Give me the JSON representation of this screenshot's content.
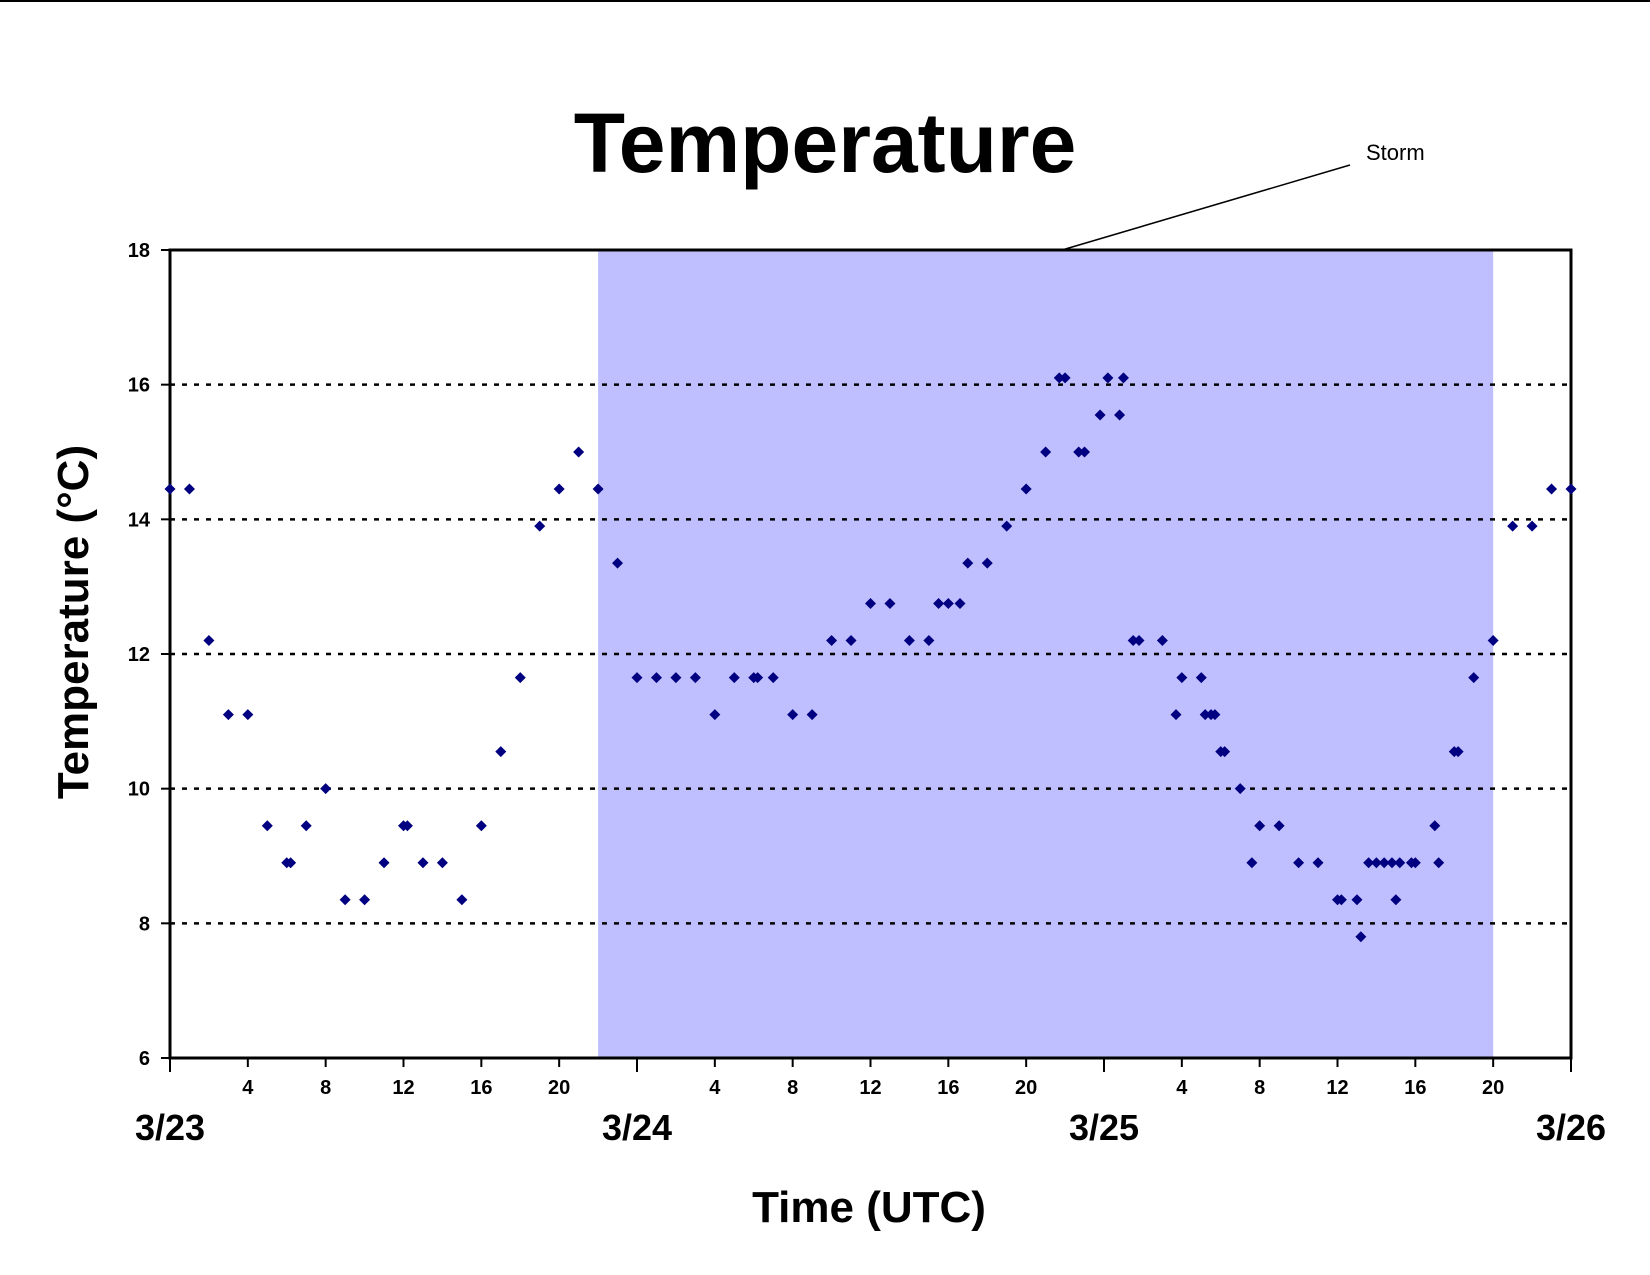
{
  "chart_data": {
    "type": "scatter",
    "title": "Temperature",
    "xlabel": "Time (UTC)",
    "ylabel": "Temperature (°C)",
    "ylim": [
      6,
      18
    ],
    "yticks": [
      "6",
      "8",
      "10",
      "12",
      "14",
      "16",
      "18"
    ],
    "xlim": [
      "3/23 00:00",
      "3/26 00:00"
    ],
    "x_hour_ticks": [
      "4",
      "8",
      "12",
      "16",
      "20",
      "4",
      "8",
      "12",
      "16",
      "20",
      "4",
      "8",
      "12",
      "16",
      "20"
    ],
    "x_day_labels": [
      "3/23",
      "3/24",
      "3/25",
      "3/26"
    ],
    "grid": "horizontal dotted at 8, 10, 12, 14, 16",
    "marker_color": "#000080",
    "shade_color": "#BFBFFF",
    "shaded_region": {
      "label": "Storm",
      "x_start": "3/23 22:00",
      "x_end": "3/25 20:00"
    },
    "series": [
      {
        "x": [
          "3/23 00:00",
          "3/23 01:00",
          "3/23 02:00",
          "3/23 03:00",
          "3/23 04:00",
          "3/23 05:00",
          "3/23 06:00",
          "3/23 06:12",
          "3/23 07:00",
          "3/23 08:00",
          "3/23 09:00",
          "3/23 10:00",
          "3/23 11:00",
          "3/23 12:00",
          "3/23 12:12",
          "3/23 13:00",
          "3/23 14:00",
          "3/23 15:00",
          "3/23 16:00",
          "3/23 17:00",
          "3/23 18:00",
          "3/23 19:00",
          "3/23 20:00",
          "3/23 21:00",
          "3/23 22:00",
          "3/23 23:00",
          "3/24 00:00",
          "3/24 01:00",
          "3/24 02:00",
          "3/24 03:00",
          "3/24 04:00",
          "3/24 05:00",
          "3/24 06:00",
          "3/24 06:12",
          "3/24 07:00",
          "3/24 08:00",
          "3/24 09:00",
          "3/24 10:00",
          "3/24 11:00",
          "3/24 12:00",
          "3/24 13:00",
          "3/24 14:00",
          "3/24 15:00",
          "3/24 15:30",
          "3/24 16:00",
          "3/24 16:36",
          "3/24 17:00",
          "3/24 18:00",
          "3/24 19:00",
          "3/24 20:00",
          "3/24 21:00",
          "3/24 21:42",
          "3/24 22:00",
          "3/24 22:42",
          "3/24 23:00",
          "3/24 23:48",
          "3/25 00:12",
          "3/25 00:48",
          "3/25 01:00",
          "3/25 01:30",
          "3/25 01:48",
          "3/25 03:00",
          "3/25 03:42",
          "3/25 04:00",
          "3/25 05:00",
          "3/25 05:12",
          "3/25 05:30",
          "3/25 05:42",
          "3/25 06:00",
          "3/25 06:12",
          "3/25 07:00",
          "3/25 07:36",
          "3/25 08:00",
          "3/25 09:00",
          "3/25 10:00",
          "3/25 11:00",
          "3/25 12:00",
          "3/25 12:12",
          "3/25 13:00",
          "3/25 13:12",
          "3/25 13:36",
          "3/25 14:00",
          "3/25 14:24",
          "3/25 14:48",
          "3/25 15:00",
          "3/25 15:12",
          "3/25 15:48",
          "3/25 16:00",
          "3/25 17:00",
          "3/25 17:12",
          "3/25 18:00",
          "3/25 18:12",
          "3/25 19:00",
          "3/25 20:00",
          "3/25 21:00",
          "3/25 22:00",
          "3/25 23:00",
          "3/26 00:00"
        ],
        "y": [
          14.45,
          14.45,
          12.2,
          11.1,
          11.1,
          9.45,
          8.9,
          8.9,
          9.45,
          10.0,
          8.35,
          8.35,
          8.9,
          9.45,
          9.45,
          8.9,
          8.9,
          8.35,
          9.45,
          10.55,
          11.65,
          13.9,
          14.45,
          15.0,
          14.45,
          13.35,
          11.65,
          11.65,
          11.65,
          11.65,
          11.1,
          11.65,
          11.65,
          11.65,
          11.65,
          11.1,
          11.1,
          12.2,
          12.2,
          12.75,
          12.75,
          12.2,
          12.2,
          12.75,
          12.75,
          12.75,
          13.35,
          13.35,
          13.9,
          14.45,
          15.0,
          16.1,
          16.1,
          15.0,
          15.0,
          15.55,
          16.1,
          15.55,
          16.1,
          12.2,
          12.2,
          12.2,
          11.1,
          11.65,
          11.65,
          11.1,
          11.1,
          11.1,
          10.55,
          10.55,
          10.0,
          8.9,
          9.45,
          9.45,
          8.9,
          8.9,
          8.35,
          8.35,
          8.35,
          7.8,
          8.9,
          8.9,
          8.9,
          8.9,
          8.35,
          8.9,
          8.9,
          8.9,
          9.45,
          8.9,
          10.55,
          10.55,
          11.65,
          12.2,
          13.9,
          13.9,
          14.45,
          14.45
        ]
      }
    ]
  }
}
